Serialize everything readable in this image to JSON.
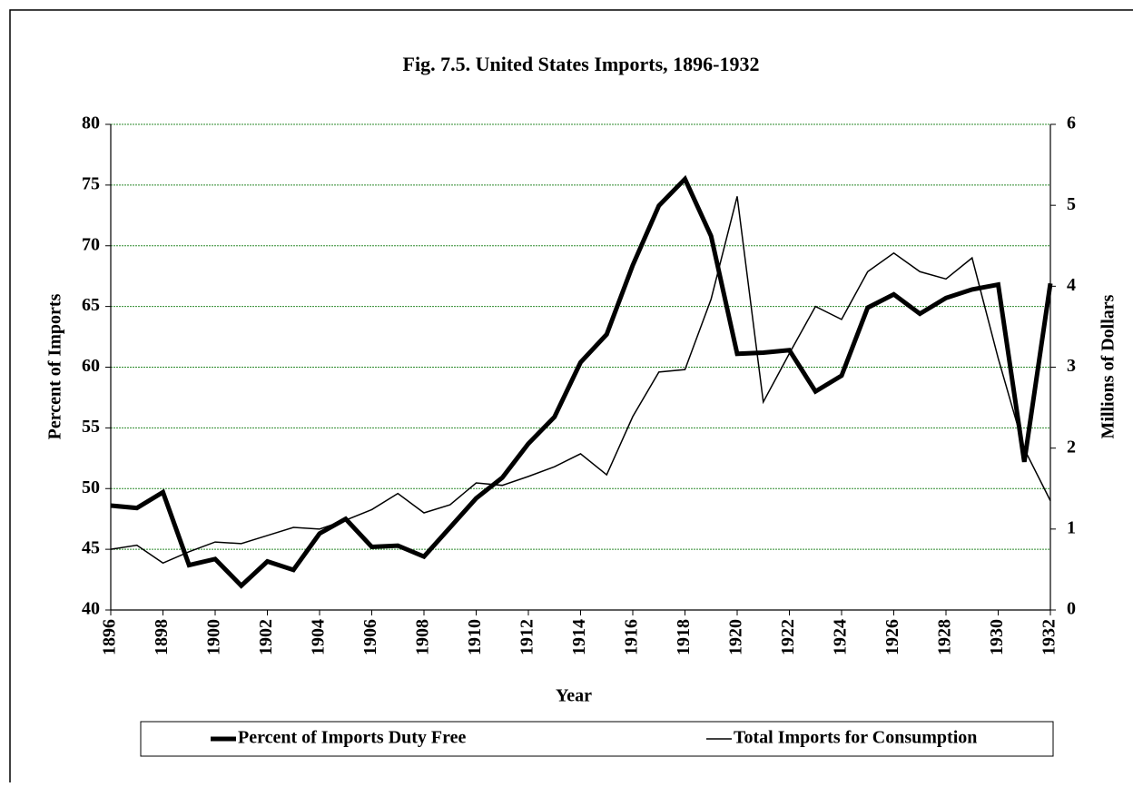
{
  "chart_data": {
    "type": "line",
    "title": "Fig. 7.5. United States Imports, 1896-1932",
    "x_label": "Year",
    "y_label": "Percent of Imports",
    "y2_label": "Millions of Dollars",
    "x": [
      1896,
      1897,
      1898,
      1899,
      1900,
      1901,
      1902,
      1903,
      1904,
      1905,
      1906,
      1907,
      1908,
      1909,
      1910,
      1911,
      1912,
      1913,
      1914,
      1915,
      1916,
      1917,
      1918,
      1919,
      1920,
      1921,
      1922,
      1923,
      1924,
      1925,
      1926,
      1927,
      1928,
      1929,
      1930,
      1931,
      1932
    ],
    "xlim": [
      1896,
      1932
    ],
    "xticks": [
      1896,
      1898,
      1900,
      1902,
      1904,
      1906,
      1908,
      1910,
      1912,
      1914,
      1916,
      1918,
      1920,
      1922,
      1924,
      1926,
      1928,
      1930,
      1932
    ],
    "ylim": [
      40,
      80
    ],
    "yticks": [
      40,
      45,
      50,
      55,
      60,
      65,
      70,
      75,
      80
    ],
    "y2lim": [
      0,
      6
    ],
    "y2ticks": [
      0,
      1,
      2,
      3,
      4,
      5,
      6
    ],
    "grid": true,
    "grid_color": "#2e8b2e",
    "legend": "bottom",
    "series": [
      {
        "name": "Percent of Imports Duty Free",
        "color": "#000000",
        "width": 5,
        "values": [
          48.6,
          48.4,
          49.7,
          43.7,
          44.2,
          42.0,
          44.0,
          43.3,
          46.3,
          47.5,
          45.2,
          45.3,
          44.4,
          46.8,
          49.2,
          50.9,
          53.7,
          55.9,
          60.4,
          62.7,
          68.4,
          73.3,
          75.5,
          70.8,
          61.1,
          61.2,
          61.4,
          58.0,
          59.3,
          64.9,
          66.0,
          64.4,
          65.7,
          66.4,
          66.8,
          52.2,
          66.9
        ]
      },
      {
        "name": "Total Imports for Consumption",
        "color": "#000000",
        "width": 1.5,
        "axis": "y2",
        "values": [
          0.75,
          0.8,
          0.58,
          0.72,
          0.84,
          0.82,
          0.92,
          1.02,
          1.0,
          1.11,
          1.24,
          1.44,
          1.2,
          1.3,
          1.57,
          1.54,
          1.65,
          1.77,
          1.93,
          1.67,
          2.39,
          2.94,
          2.97,
          3.84,
          5.11,
          2.57,
          3.17,
          3.75,
          3.59,
          4.18,
          4.41,
          4.18,
          4.09,
          4.35,
          3.11,
          1.99,
          1.35
        ]
      }
    ]
  }
}
